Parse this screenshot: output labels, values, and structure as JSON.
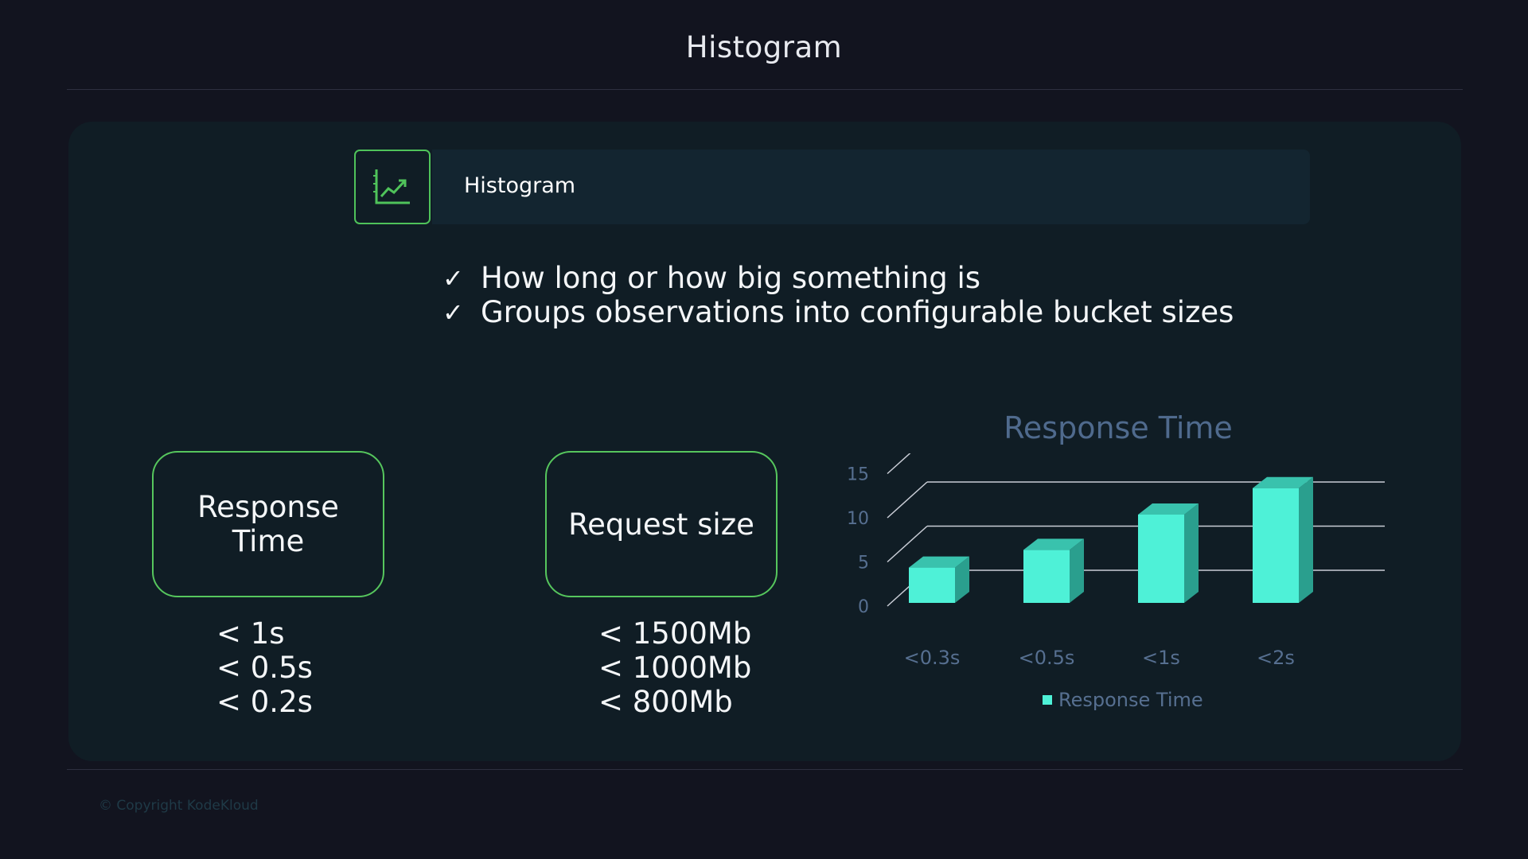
{
  "page": {
    "title": "Histogram",
    "copyright": "© Copyright KodeKloud"
  },
  "header": {
    "label": "Histogram",
    "icon": "chart-trend-icon",
    "accent_color": "#4fc35a"
  },
  "bullets": [
    {
      "icon": "checkmark-icon",
      "glyph": "✓",
      "text": "How long or how big something is"
    },
    {
      "icon": "checkmark-icon",
      "glyph": "✓",
      "text": "Groups observations into configurable bucket sizes"
    }
  ],
  "examples": [
    {
      "label_line1": "Response",
      "label_line2": "Time",
      "buckets": [
        "< 1s",
        "< 0.5s",
        "< 0.2s"
      ]
    },
    {
      "label_line1": "Request size",
      "label_line2": "",
      "buckets": [
        "< 1500Mb",
        "< 1000Mb",
        "< 800Mb"
      ]
    }
  ],
  "chart_data": {
    "type": "bar",
    "title": "Response Time",
    "categories": [
      "<0.3s",
      "<0.5s",
      "<1s",
      "<2s"
    ],
    "series": [
      {
        "name": "Response Time",
        "values": [
          4,
          6,
          10,
          13
        ],
        "color": "#4ef1d7"
      }
    ],
    "ylim": [
      0,
      15
    ],
    "yticks": [
      0,
      5,
      10,
      15
    ],
    "grid": true,
    "legend": "bottom",
    "style": "3d"
  }
}
